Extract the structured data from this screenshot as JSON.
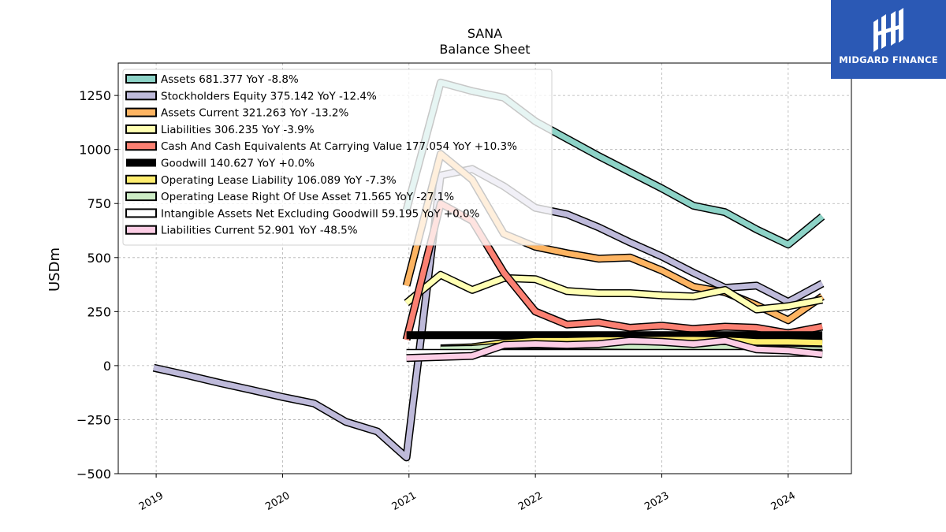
{
  "chart_data": {
    "type": "line",
    "title": "SANA",
    "subtitle": "Balance  Sheet",
    "ylabel": "USDm",
    "xlabel": "",
    "ylim": [
      -500,
      1400
    ],
    "xlim": [
      2018.7,
      2024.5
    ],
    "yticks": [
      -500,
      -250,
      0,
      250,
      500,
      750,
      1000,
      1250
    ],
    "ytick_labels": [
      "−500",
      "−250",
      "0",
      "250",
      "500",
      "750",
      "1000",
      "1250"
    ],
    "xticks": [
      2019,
      2020,
      2021,
      2022,
      2023,
      2024
    ],
    "xtick_labels": [
      "2019",
      "2020",
      "2021",
      "2022",
      "2023",
      "2024"
    ],
    "grid": true,
    "legend_position": "upper-left",
    "series": [
      {
        "name": "Assets",
        "legend": "Assets  681.377 YoY -8.8%",
        "color": "#8dd3c7",
        "width": 7,
        "x": [
          2020.98,
          2021.25,
          2021.5,
          2021.75,
          2022.0,
          2022.25,
          2022.5,
          2022.75,
          2023.0,
          2023.25,
          2023.5,
          2023.75,
          2024.0,
          2024.27
        ],
        "y": [
          720,
          1310,
          1270,
          1240,
          1130,
          1050,
          970,
          895,
          820,
          740,
          710,
          630,
          560,
          690
        ]
      },
      {
        "name": "Stockholders Equity",
        "legend": "Stockholders Equity  375.142 YoY -12.4%",
        "color": "#bebada",
        "width": 7,
        "x": [
          2018.98,
          2019.25,
          2019.5,
          2019.75,
          2020.0,
          2020.25,
          2020.5,
          2020.75,
          2020.98,
          2021.25,
          2021.5,
          2021.75,
          2022.0,
          2022.25,
          2022.5,
          2022.75,
          2023.0,
          2023.25,
          2023.5,
          2023.75,
          2024.0,
          2024.27
        ],
        "y": [
          -10,
          -45,
          -80,
          -112,
          -145,
          -175,
          -260,
          -305,
          -425,
          880,
          910,
          830,
          730,
          700,
          640,
          570,
          505,
          430,
          360,
          370,
          295,
          380
        ]
      },
      {
        "name": "Assets Current",
        "legend": "Assets Current  321.263 YoY -13.2%",
        "color": "#fdb462",
        "width": 7,
        "x": [
          2020.98,
          2021.25,
          2021.5,
          2021.75,
          2022.0,
          2022.25,
          2022.5,
          2022.75,
          2023.0,
          2023.25,
          2023.5,
          2023.75,
          2024.0,
          2024.27
        ],
        "y": [
          370,
          980,
          860,
          610,
          550,
          520,
          495,
          500,
          440,
          365,
          340,
          280,
          210,
          320
        ]
      },
      {
        "name": "Liabilities",
        "legend": "Liabilities  306.235 YoY -3.9%",
        "color": "#ffffb3",
        "width": 7,
        "x": [
          2020.98,
          2021.25,
          2021.5,
          2021.75,
          2022.0,
          2022.25,
          2022.5,
          2022.75,
          2023.0,
          2023.25,
          2023.5,
          2023.75,
          2024.0,
          2024.27
        ],
        "y": [
          290,
          420,
          350,
          405,
          400,
          345,
          335,
          335,
          325,
          320,
          350,
          260,
          275,
          305
        ]
      },
      {
        "name": "Cash And Cash Equivalents At Carrying Value",
        "legend": "Cash And Cash Equivalents At Carrying Value  177.054 YoY +10.3%",
        "color": "#fb8072",
        "width": 7,
        "x": [
          2020.98,
          2021.25,
          2021.5,
          2021.75,
          2022.0,
          2022.25,
          2022.5,
          2022.75,
          2023.0,
          2023.25,
          2023.5,
          2023.75,
          2024.0,
          2024.27
        ],
        "y": [
          120,
          750,
          670,
          430,
          250,
          190,
          200,
          175,
          185,
          170,
          180,
          175,
          150,
          180
        ]
      },
      {
        "name": "Goodwill",
        "legend": "Goodwill  140.627 YoY +0.0%",
        "color": "#000000",
        "width": 10,
        "x": [
          2020.98,
          2024.27
        ],
        "y": [
          140.627,
          140.627
        ]
      },
      {
        "name": "Operating Lease Liability",
        "legend": "Operating Lease Liability  106.089 YoY -7.3%",
        "color": "#ffed6f",
        "width": 7,
        "x": [
          2021.25,
          2021.5,
          2021.75,
          2022.0,
          2022.25,
          2022.5,
          2022.75,
          2023.0,
          2023.25,
          2023.5,
          2023.75,
          2024.0,
          2024.27
        ],
        "y": [
          80,
          85,
          105,
          115,
          115,
          118,
          118,
          120,
          120,
          118,
          110,
          110,
          106
        ]
      },
      {
        "name": "Operating Lease Right Of Use Asset",
        "legend": "Operating Lease Right Of Use Asset  71.565 YoY -27.1%",
        "color": "#ccebc5",
        "width": 7,
        "x": [
          2021.25,
          2021.5,
          2021.75,
          2022.0,
          2022.25,
          2022.5,
          2022.75,
          2023.0,
          2023.25,
          2023.5,
          2023.75,
          2024.0,
          2024.27
        ],
        "y": [
          75,
          78,
          90,
          95,
          92,
          92,
          90,
          88,
          85,
          82,
          78,
          75,
          72
        ]
      },
      {
        "name": "Intangible Assets Net Excluding Goodwill",
        "legend": "Intangible Assets Net Excluding Goodwill  59.195 YoY +0.0%",
        "color": "#ffffff",
        "width": 7,
        "x": [
          2020.98,
          2024.27
        ],
        "y": [
          59.195,
          59.195
        ]
      },
      {
        "name": "Liabilities Current",
        "legend": "Liabilities Current  52.901 YoY -48.5%",
        "color": "#fccde5",
        "width": 7,
        "x": [
          2020.98,
          2021.25,
          2021.5,
          2021.75,
          2022.0,
          2022.25,
          2022.5,
          2022.75,
          2023.0,
          2023.25,
          2023.5,
          2023.75,
          2024.0,
          2024.27
        ],
        "y": [
          35,
          40,
          45,
          95,
          100,
          95,
          100,
          115,
          110,
          100,
          115,
          75,
          70,
          53
        ]
      }
    ]
  },
  "brand": {
    "name": "MIDGARD FINANCE",
    "bg_color": "#2b59b5",
    "icon": "midgard-logo-icon"
  }
}
